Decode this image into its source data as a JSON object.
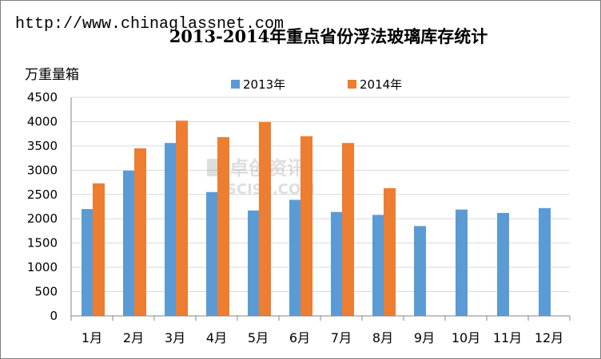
{
  "header": {
    "url_text": "http://www.chinaglassnet.com"
  },
  "watermark": {
    "cn_text": "卓创资讯",
    "en_text": "SCI99.COM"
  },
  "chart_data": {
    "type": "bar",
    "title": "2013-2014年重点省份浮法玻璃库存统计",
    "ylabel": "万重量箱",
    "xlabel": "",
    "categories": [
      "1月",
      "2月",
      "3月",
      "4月",
      "5月",
      "6月",
      "7月",
      "8月",
      "9月",
      "10月",
      "11月",
      "12月"
    ],
    "series": [
      {
        "name": "2013年",
        "color": "#5B9BD5",
        "values": [
          2200,
          2990,
          3560,
          2550,
          2170,
          2390,
          2140,
          2080,
          1850,
          2190,
          2120,
          2220
        ]
      },
      {
        "name": "2014年",
        "color": "#ED7D31",
        "values": [
          2730,
          3450,
          4020,
          3680,
          3990,
          3700,
          3560,
          2630,
          null,
          null,
          null,
          null
        ]
      }
    ],
    "ylim": [
      0,
      4500
    ],
    "yticks": [
      0,
      500,
      1000,
      1500,
      2000,
      2500,
      3000,
      3500,
      4000,
      4500
    ],
    "grid": true,
    "legend_position": "top"
  }
}
